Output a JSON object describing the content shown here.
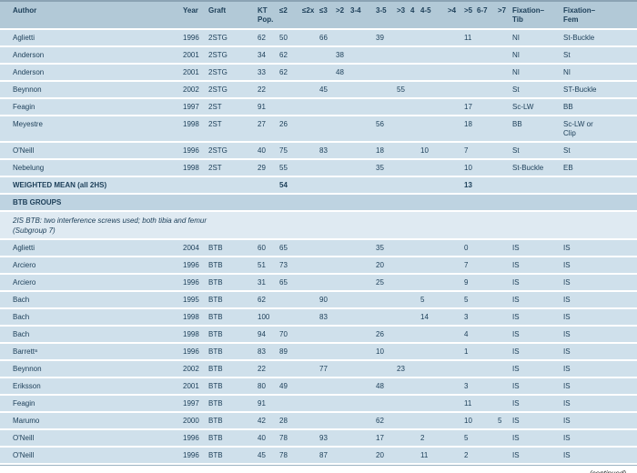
{
  "colors": {
    "header_bg": "#b2c9d7",
    "row_bg": "#cfe0eb",
    "section_bg": "#bed3e1",
    "note_bg": "#dfeaf2",
    "text": "#1e405a",
    "rule": "#8ba3b4"
  },
  "table": {
    "column_ids": [
      "author",
      "year",
      "graft",
      "kt_pop",
      "le2",
      "le2x",
      "le3",
      "gt2",
      "r3_4",
      "r3_5",
      "gt3",
      "r4",
      "r4_5",
      "gt4",
      "gt5",
      "r6_7",
      "gt7",
      "fix_tib",
      "fix_fem"
    ],
    "header_labels": [
      "Author",
      "Year",
      "Graft",
      "KT\nPop.",
      "≤2",
      "≤2x",
      "≤3",
      ">2",
      "3-4",
      "3-5",
      ">3",
      "4",
      "4-5",
      ">4",
      ">5",
      "6-7",
      ">7",
      "Fixation–\nTib",
      "Fixation–\nFem"
    ],
    "rows": [
      {
        "type": "data",
        "cells": [
          "Aglietti",
          "1996",
          "2STG",
          "62",
          "50",
          "",
          "66",
          "",
          "",
          "39",
          "",
          "",
          "",
          "",
          "11",
          "",
          "",
          "NI",
          "St-Buckle"
        ]
      },
      {
        "type": "data",
        "cells": [
          "Anderson",
          "2001",
          "2STG",
          "34",
          "62",
          "",
          "",
          "38",
          "",
          "",
          "",
          "",
          "",
          "",
          "",
          "",
          "",
          "NI",
          "St"
        ]
      },
      {
        "type": "data",
        "cells": [
          "Anderson",
          "2001",
          "2STG",
          "33",
          "62",
          "",
          "",
          "48",
          "",
          "",
          "",
          "",
          "",
          "",
          "",
          "",
          "",
          "NI",
          "NI"
        ]
      },
      {
        "type": "data",
        "cells": [
          "Beynnon",
          "2002",
          "2STG",
          "22",
          "",
          "",
          "45",
          "",
          "",
          "",
          "55",
          "",
          "",
          "",
          "",
          "",
          "",
          "St",
          "ST-Buckle"
        ]
      },
      {
        "type": "data",
        "cells": [
          "Feagin",
          "1997",
          "2ST",
          "91",
          "",
          "",
          "",
          "",
          "",
          "",
          "",
          "",
          "",
          "",
          "17",
          "",
          "",
          "Sc-LW",
          "BB"
        ]
      },
      {
        "type": "data",
        "cells": [
          "Meyestre",
          "1998",
          "2ST",
          "27",
          "26",
          "",
          "",
          "",
          "",
          "56",
          "",
          "",
          "",
          "",
          "18",
          "",
          "",
          "BB",
          "Sc-LW or\nClip"
        ]
      },
      {
        "type": "data",
        "cells": [
          "O'Neill",
          "1996",
          "2STG",
          "40",
          "75",
          "",
          "83",
          "",
          "",
          "18",
          "",
          "",
          "10",
          "",
          "7",
          "",
          "",
          "St",
          "St"
        ]
      },
      {
        "type": "data",
        "cells": [
          "Nebelung",
          "1998",
          "2ST",
          "29",
          "55",
          "",
          "",
          "",
          "",
          "35",
          "",
          "",
          "",
          "",
          "10",
          "",
          "",
          "St-Buckle",
          "EB"
        ]
      },
      {
        "type": "weighted",
        "cells": [
          "WEIGHTED MEAN (all 2HS)",
          "",
          "",
          "",
          "54",
          "",
          "",
          "",
          "",
          "",
          "",
          "",
          "",
          "",
          "13",
          "",
          "",
          "",
          ""
        ]
      },
      {
        "type": "section",
        "label": "BTB GROUPS"
      },
      {
        "type": "note",
        "label": "2IS BTB: two interference screws used; both tibia and femur\n(Subgroup 7)"
      },
      {
        "type": "data",
        "cells": [
          "Aglietti",
          "2004",
          "BTB",
          "60",
          "65",
          "",
          "",
          "",
          "",
          "35",
          "",
          "",
          "",
          "",
          "0",
          "",
          "",
          "IS",
          "IS"
        ]
      },
      {
        "type": "data",
        "cells": [
          "Arciero",
          "1996",
          "BTB",
          "51",
          "73",
          "",
          "",
          "",
          "",
          "20",
          "",
          "",
          "",
          "",
          "7",
          "",
          "",
          "IS",
          "IS"
        ]
      },
      {
        "type": "data",
        "cells": [
          "Arciero",
          "1996",
          "BTB",
          "31",
          "65",
          "",
          "",
          "",
          "",
          "25",
          "",
          "",
          "",
          "",
          "9",
          "",
          "",
          "IS",
          "IS"
        ]
      },
      {
        "type": "data",
        "cells": [
          "Bach",
          "1995",
          "BTB",
          "62",
          "",
          "",
          "90",
          "",
          "",
          "",
          "",
          "",
          "5",
          "",
          "5",
          "",
          "",
          "IS",
          "IS"
        ]
      },
      {
        "type": "data",
        "cells": [
          "Bach",
          "1998",
          "BTB",
          "100",
          "",
          "",
          "83",
          "",
          "",
          "",
          "",
          "",
          "14",
          "",
          "3",
          "",
          "",
          "IS",
          "IS"
        ]
      },
      {
        "type": "data",
        "cells": [
          "Bach",
          "1998",
          "BTB",
          "94",
          "70",
          "",
          "",
          "",
          "",
          "26",
          "",
          "",
          "",
          "",
          "4",
          "",
          "",
          "IS",
          "IS"
        ]
      },
      {
        "type": "data",
        "cells": [
          "Barrettᵃ",
          "1996",
          "BTB",
          "83",
          "89",
          "",
          "",
          "",
          "",
          "10",
          "",
          "",
          "",
          "",
          "1",
          "",
          "",
          "IS",
          "IS"
        ]
      },
      {
        "type": "data",
        "cells": [
          "Beynnon",
          "2002",
          "BTB",
          "22",
          "",
          "",
          "77",
          "",
          "",
          "",
          "23",
          "",
          "",
          "",
          "",
          "",
          "",
          "IS",
          "IS"
        ]
      },
      {
        "type": "data",
        "cells": [
          "Eriksson",
          "2001",
          "BTB",
          "80",
          "49",
          "",
          "",
          "",
          "",
          "48",
          "",
          "",
          "",
          "",
          "3",
          "",
          "",
          "IS",
          "IS"
        ]
      },
      {
        "type": "data",
        "cells": [
          "Feagin",
          "1997",
          "BTB",
          "91",
          "",
          "",
          "",
          "",
          "",
          "",
          "",
          "",
          "",
          "",
          "11",
          "",
          "",
          "IS",
          "IS"
        ]
      },
      {
        "type": "data",
        "cells": [
          "Marumo",
          "2000",
          "BTB",
          "42",
          "28",
          "",
          "",
          "",
          "",
          "62",
          "",
          "",
          "",
          "",
          "10",
          "",
          "5",
          "IS",
          "IS"
        ]
      },
      {
        "type": "data",
        "cells": [
          "O'Neill",
          "1996",
          "BTB",
          "40",
          "78",
          "",
          "93",
          "",
          "",
          "17",
          "",
          "",
          "2",
          "",
          "5",
          "",
          "",
          "IS",
          "IS"
        ]
      },
      {
        "type": "data",
        "cells": [
          "O'Neill",
          "1996",
          "BTB",
          "45",
          "78",
          "",
          "87",
          "",
          "",
          "20",
          "",
          "",
          "11",
          "",
          "2",
          "",
          "",
          "IS",
          "IS"
        ]
      }
    ]
  },
  "footer": {
    "continued_label": "(continued)"
  }
}
